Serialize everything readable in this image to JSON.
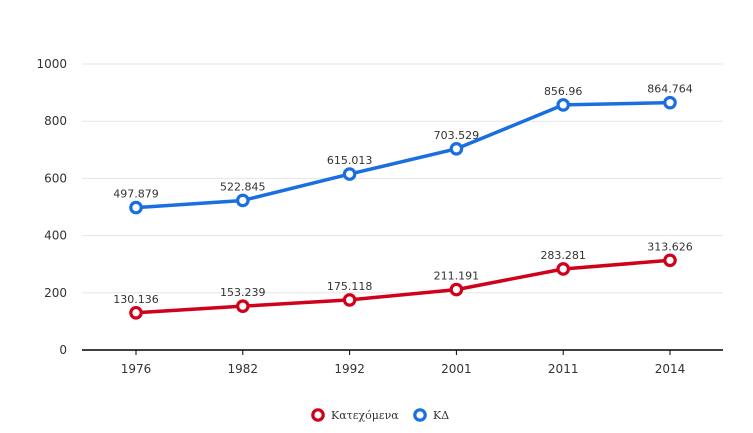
{
  "chart_data": {
    "type": "line",
    "title": "",
    "xlabel": "",
    "ylabel": "",
    "categories": [
      "1976",
      "1982",
      "1992",
      "2001",
      "2011",
      "2014"
    ],
    "ylim": [
      0,
      1000
    ],
    "yticks": [
      0,
      200,
      400,
      600,
      800,
      1000
    ],
    "grid": true,
    "legend": "bottom-center",
    "series": [
      {
        "name": "Κατεχόμενα",
        "color": "#d0021b",
        "values": [
          130.136,
          153.239,
          175.118,
          211.191,
          283.281,
          313.626
        ],
        "labels": [
          "130.136",
          "153.239",
          "175.118",
          "211.191",
          "283.281",
          "313.626"
        ]
      },
      {
        "name": "ΚΔ",
        "color": "#1a6fe0",
        "values": [
          497.879,
          522.845,
          615.013,
          703.529,
          856.96,
          864.764
        ],
        "labels": [
          "497.879",
          "522.845",
          "615.013",
          "703.529",
          "856.96",
          "864.764"
        ]
      }
    ]
  }
}
